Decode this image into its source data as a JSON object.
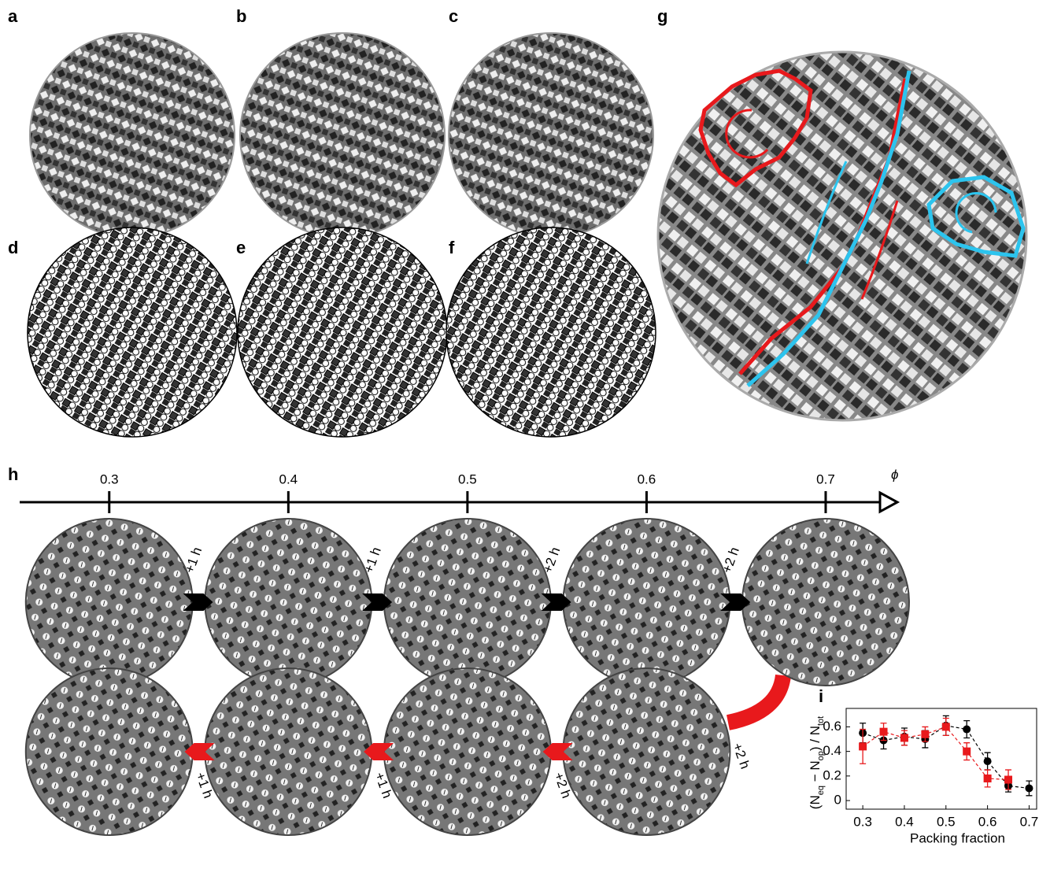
{
  "panels": {
    "a": "a",
    "b": "b",
    "c": "c",
    "d": "d",
    "e": "e",
    "f": "f",
    "g": "g",
    "h": "h",
    "i": "i"
  },
  "h": {
    "symbol": "ϕ",
    "xlim": [
      0.25,
      0.74
    ],
    "ticks": [
      0.3,
      0.4,
      0.5,
      0.6,
      0.7
    ],
    "forward_steps": [
      "+1 h",
      "+1 h",
      "+2 h",
      "+2 h"
    ],
    "return_step": "+2 h",
    "backward_steps": [
      "+1 h",
      "+1 h",
      "+2 h"
    ]
  },
  "chart_data": {
    "type": "scatter",
    "xlabel": "Packing fraction",
    "ylabel": [
      "(N",
      "eq",
      " − N",
      "op",
      ") / N",
      "tot"
    ],
    "xlim": [
      0.26,
      0.72
    ],
    "ylim": [
      -0.07,
      0.75
    ],
    "xticks": [
      0.3,
      0.4,
      0.5,
      0.6,
      {
        "value": 0.7,
        "label": "0.7"
      }
    ],
    "yticks": [
      0,
      0.2,
      0.4,
      0.6
    ],
    "series": [
      {
        "color": "#000000",
        "marker": "circle",
        "x": [
          0.3,
          0.35,
          0.4,
          0.45,
          0.5,
          0.55,
          0.6,
          0.65,
          0.7
        ],
        "values": [
          0.55,
          0.49,
          0.52,
          0.5,
          0.61,
          0.58,
          0.32,
          0.12,
          0.1
        ],
        "errors": [
          0.08,
          0.07,
          0.07,
          0.07,
          0.08,
          0.07,
          0.07,
          0.05,
          0.06
        ]
      },
      {
        "color": "#e8191c",
        "marker": "square",
        "x": [
          0.3,
          0.35,
          0.4,
          0.45,
          0.5,
          0.55,
          0.6,
          0.65
        ],
        "values": [
          0.44,
          0.56,
          0.51,
          0.54,
          0.6,
          0.4,
          0.18,
          0.17
        ],
        "errors": [
          0.14,
          0.07,
          0.06,
          0.06,
          0.07,
          0.07,
          0.07,
          0.08
        ]
      }
    ]
  }
}
